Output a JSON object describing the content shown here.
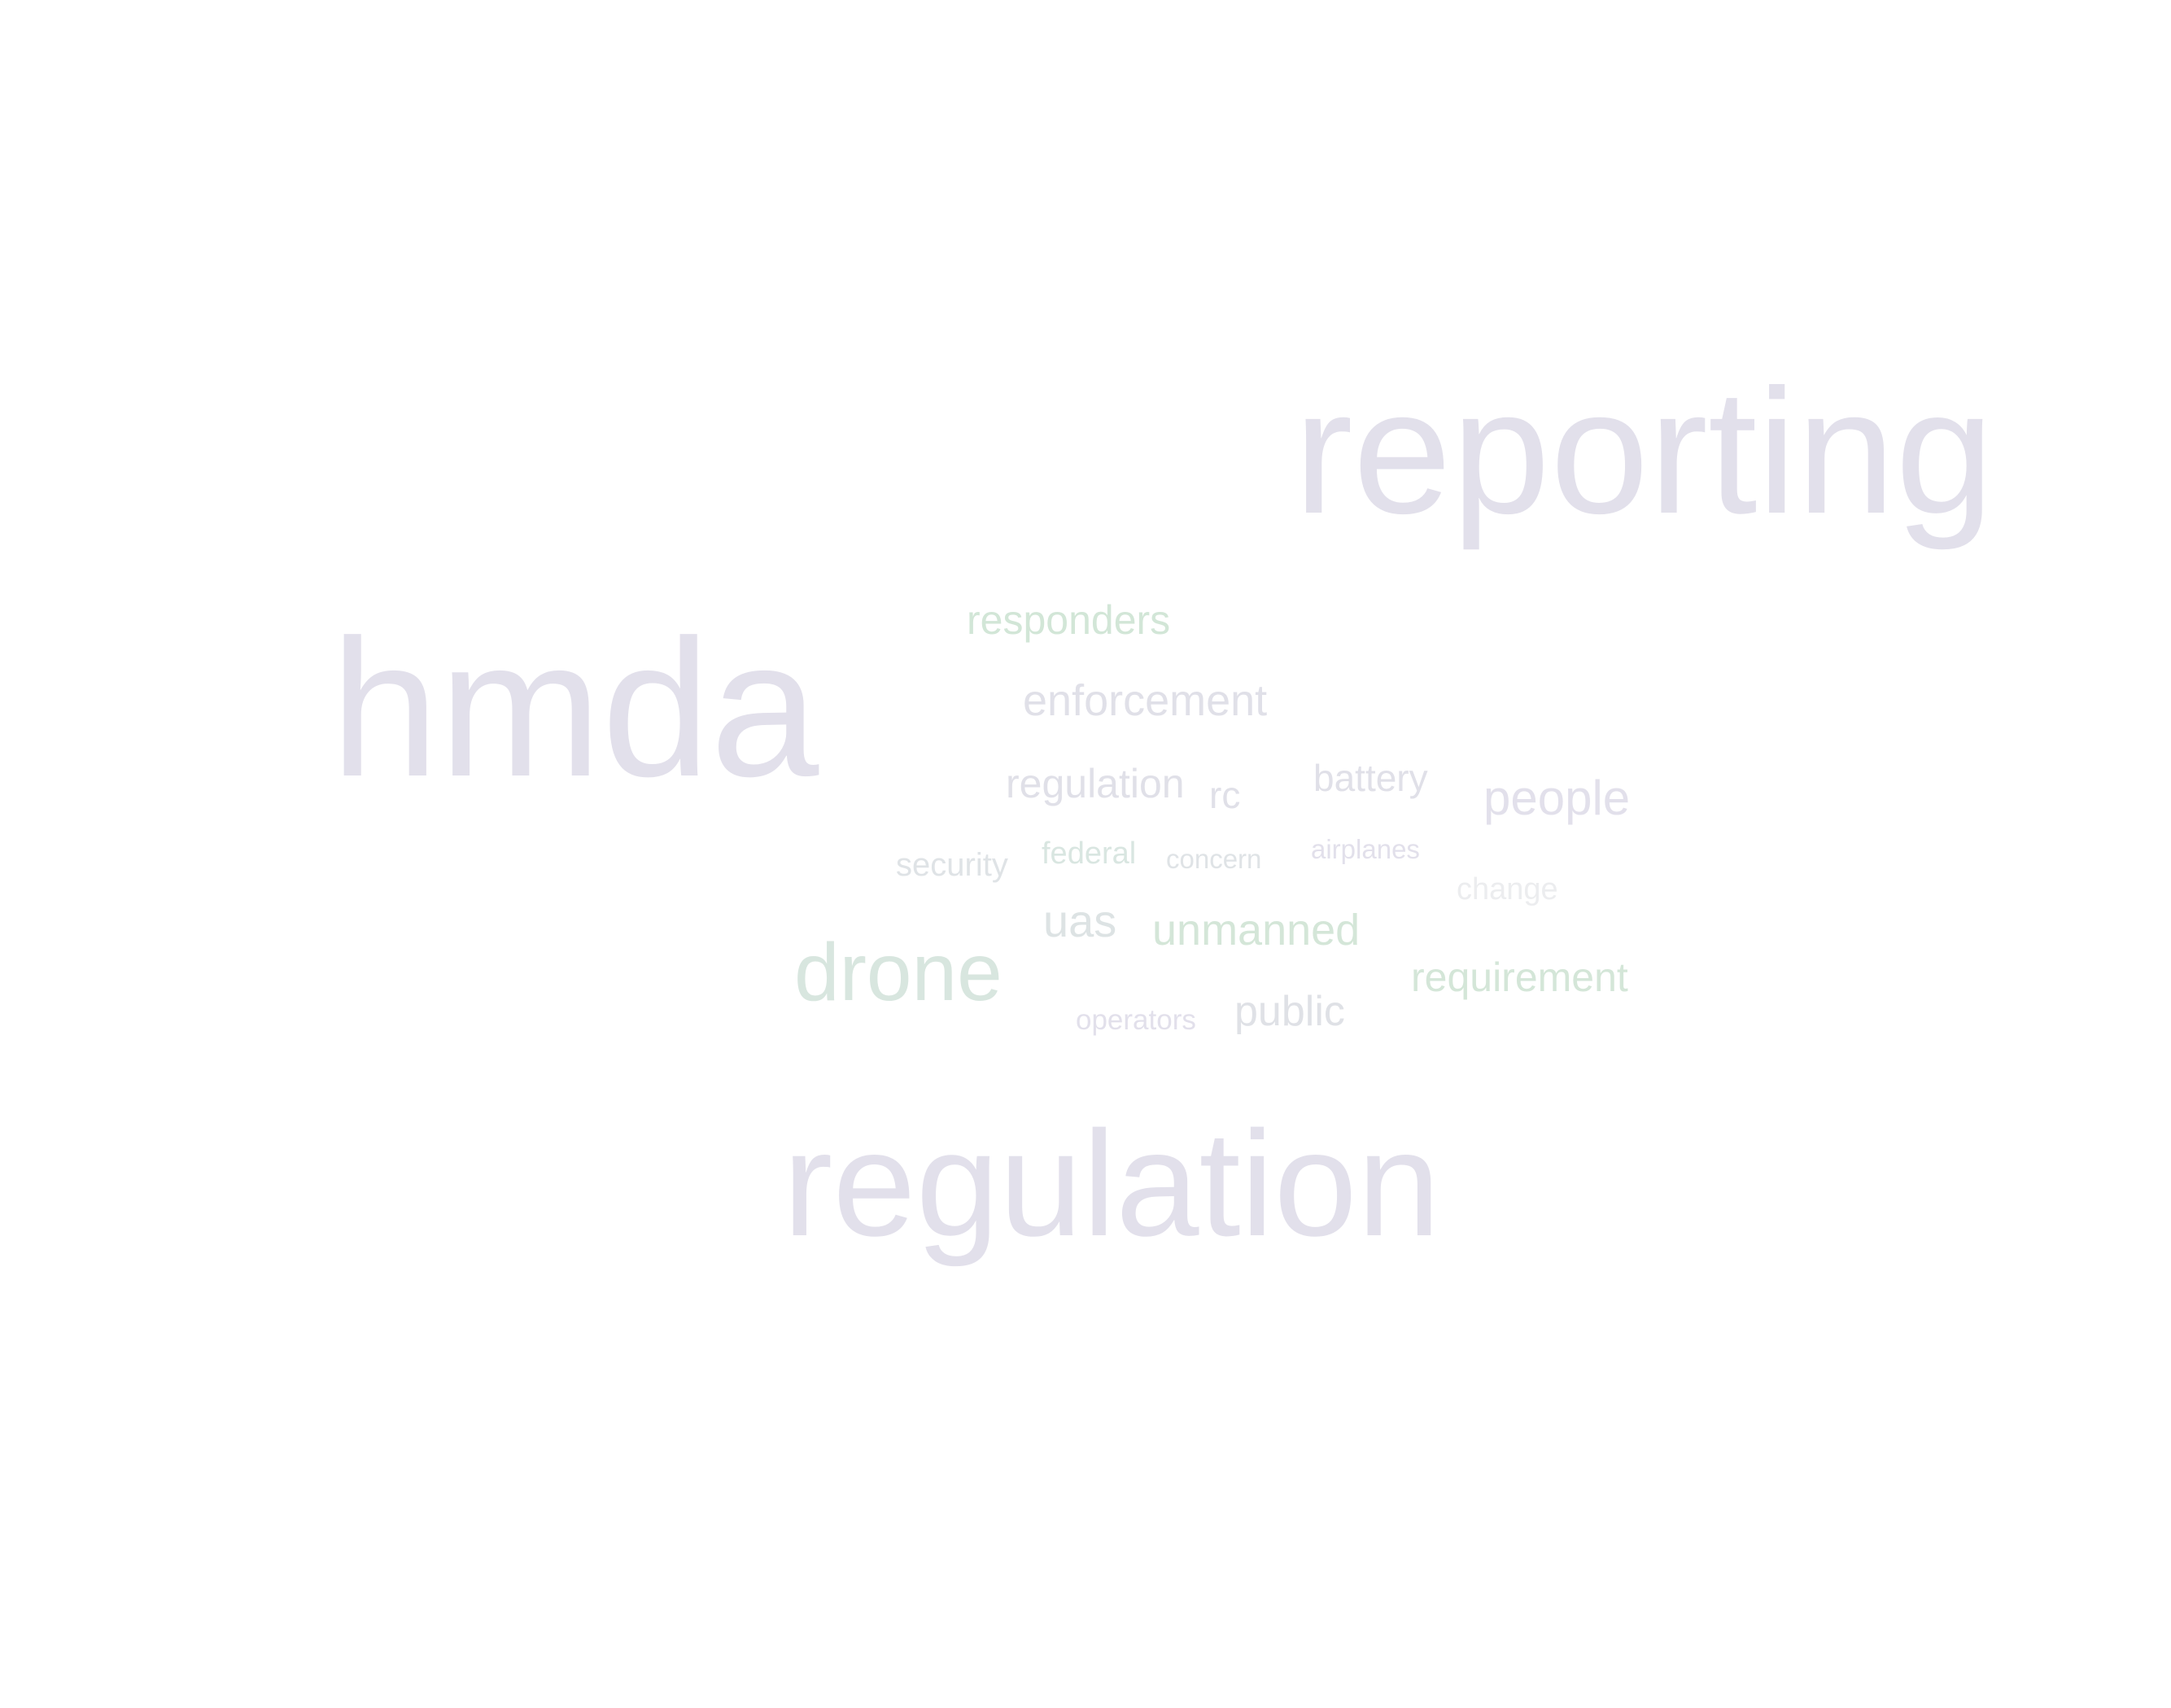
{
  "words": {
    "reporting": {
      "text": "reporting",
      "color": "#e2e0eb"
    },
    "hmda": {
      "text": "hmda",
      "color": "#e2e0eb"
    },
    "regulation_l": {
      "text": "regulation",
      "color": "#e2e0eb"
    },
    "drone": {
      "text": "drone",
      "color": "#d8e6df"
    },
    "responders": {
      "text": "responders",
      "color": "#d2e6d7"
    },
    "enforcement": {
      "text": "enforcement",
      "color": "#e0e0e8"
    },
    "regulation_s": {
      "text": "regulation",
      "color": "#e0e0e8"
    },
    "rc": {
      "text": "rc",
      "color": "#e0e0e8"
    },
    "battery": {
      "text": "battery",
      "color": "#e0e0e8"
    },
    "people": {
      "text": "people",
      "color": "#e2e0eb"
    },
    "security": {
      "text": "security",
      "color": "#dfe3e6"
    },
    "federal": {
      "text": "federal",
      "color": "#d9e6e1"
    },
    "concern": {
      "text": "concern",
      "color": "#dfe3e6"
    },
    "airplanes": {
      "text": "airplanes",
      "color": "#e2e0eb"
    },
    "change": {
      "text": "change",
      "color": "#ecedef"
    },
    "uas": {
      "text": "uas",
      "color": "#dde3e4"
    },
    "unmanned": {
      "text": "unmanned",
      "color": "#d4e6d8"
    },
    "requirement": {
      "text": "requirement",
      "color": "#d4e6d8"
    },
    "operators": {
      "text": "operators",
      "color": "#e2e0eb"
    },
    "public": {
      "text": "public",
      "color": "#dfe1e6"
    }
  }
}
